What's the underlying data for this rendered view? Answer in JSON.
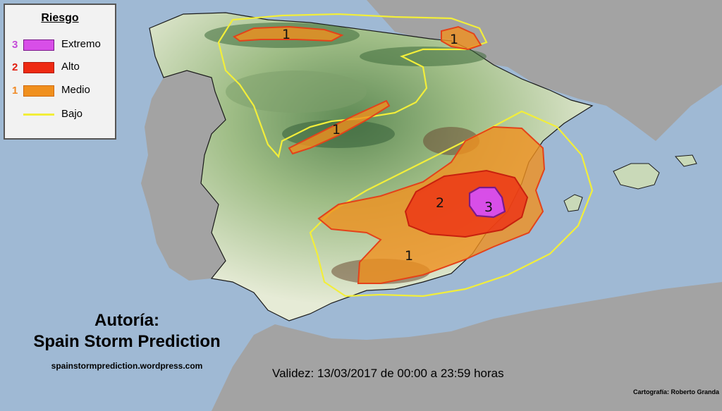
{
  "legend": {
    "title": "Riesgo",
    "items": [
      {
        "num": "3",
        "label": "Extremo",
        "color": "#d84ee8",
        "num_color": "#c44ad8",
        "kind": "fill"
      },
      {
        "num": "2",
        "label": "Alto",
        "color": "#ee2a12",
        "num_color": "#e21c0c",
        "kind": "fill"
      },
      {
        "num": "1",
        "label": "Medio",
        "color": "#f0901e",
        "num_color": "#f08a26",
        "kind": "fill"
      },
      {
        "num": "",
        "label": "Bajo",
        "color": "#f2ee3a",
        "num_color": "#000000",
        "kind": "line"
      }
    ]
  },
  "risk_labels": [
    "1",
    "1",
    "1",
    "1",
    "2",
    "3"
  ],
  "authorship": {
    "line1": "Autoría:",
    "line2": "Spain Storm Prediction",
    "url": "spainstormprediction.wordpress.com"
  },
  "validity": "Validez: 13/03/2017 de 00:00 a 23:59 horas",
  "credit": "Cartografía: Roberto Granda",
  "colors": {
    "sea": "#9fb9d4",
    "foreign_land": "#a3a3a3",
    "land_low": "#e7ecd9",
    "land_mid": "#a9c48f",
    "land_high": "#4e7a48",
    "land_peak": "#7a5a3c",
    "low_risk": "#f2ee3a",
    "medium_risk": "#f0901e",
    "high_risk": "#ee2a12",
    "extreme_risk": "#d84ee8"
  }
}
